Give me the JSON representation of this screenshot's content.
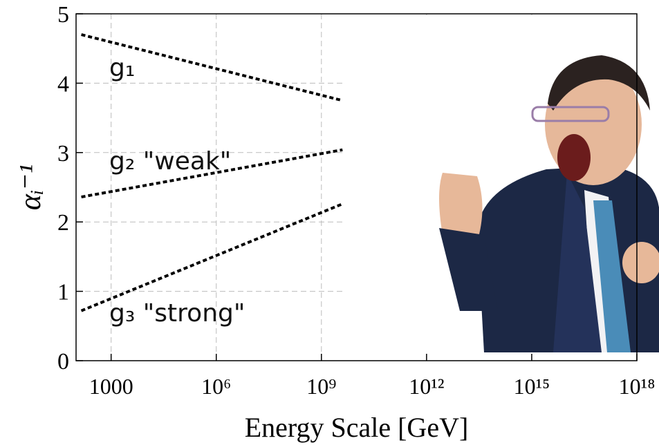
{
  "chart_data": {
    "type": "line",
    "xlabel": "Energy Scale [GeV]",
    "ylabel": "αᵢ⁻¹",
    "x": [
      141,
      4000000000
    ],
    "series": [
      {
        "values": [
          4.7,
          3.75
        ],
        "color": "#000000"
      },
      {
        "values": [
          2.36,
          3.04
        ],
        "color": "#000000"
      },
      {
        "values": [
          0.72,
          2.26
        ],
        "color": "#000000"
      }
    ],
    "annotations": [
      "g₁",
      "g₂ \"weak\"",
      "g₃ \"strong\""
    ],
    "xlim": [
      100,
      1000000000000000000
    ],
    "ylim": [
      0,
      5
    ],
    "xticks": [
      1000,
      {
        "value": 1000000,
        "label": "10⁶"
      },
      {
        "value": 1000000000,
        "label": "10⁹"
      },
      {
        "value": 1000000000000,
        "label": "10¹²"
      },
      {
        "value": 1000000000000000,
        "label": "10¹⁵"
      },
      {
        "value": 1000000000000000000,
        "label": "10¹⁸"
      }
    ],
    "yticks": [
      0,
      1,
      2,
      3,
      4,
      5
    ],
    "xscale": "log",
    "grid": true
  }
}
